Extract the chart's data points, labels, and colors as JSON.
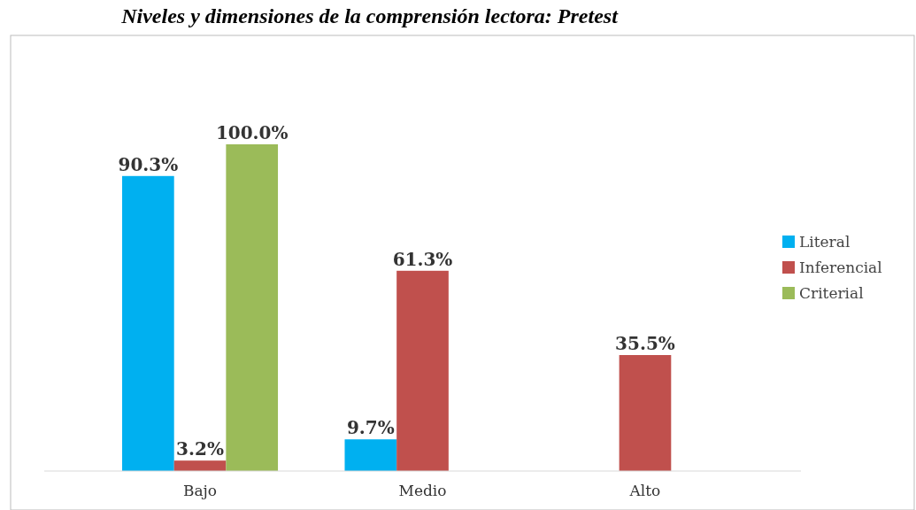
{
  "chart_data": {
    "type": "bar",
    "title": "Niveles y dimensiones de la comprensión lectora: Pretest",
    "categories": [
      "Bajo",
      "Medio",
      "Alto"
    ],
    "series": [
      {
        "name": "Literal",
        "color": "#00b0f0",
        "values": [
          90.3,
          9.7,
          null
        ],
        "value_labels": [
          "90.3%",
          "9.7%",
          null
        ]
      },
      {
        "name": "Inferencial",
        "color": "#c0504d",
        "values": [
          3.2,
          61.3,
          35.5
        ],
        "value_labels": [
          "3.2%",
          "61.3%",
          "35.5%"
        ]
      },
      {
        "name": "Criterial",
        "color": "#9bbb59",
        "values": [
          100,
          null,
          null
        ],
        "value_labels": [
          "100.0%",
          null,
          null
        ]
      }
    ],
    "ylim": [
      0,
      100
    ],
    "legend": "right",
    "grid": false
  }
}
